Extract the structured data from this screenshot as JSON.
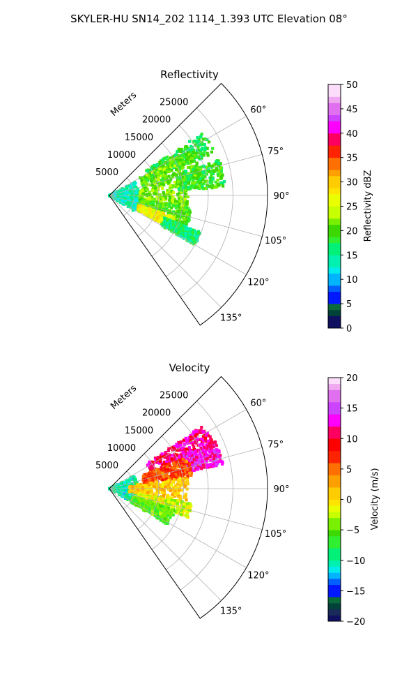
{
  "figure": {
    "suptitle": "SKYLER-HU  SN14_202  1114_1.393 UTC Elevation 08°"
  },
  "chart_data": [
    {
      "type": "heatmap",
      "subtype": "radar-sector (polar PPI)",
      "title": "Reflectivity",
      "range_axis_label": "Meters",
      "range_ticks": [
        "5000",
        "10000",
        "15000",
        "20000",
        "25000"
      ],
      "range_tick_values": [
        5000,
        10000,
        15000,
        20000,
        25000
      ],
      "rlim": [
        0,
        32000
      ],
      "azimuth_range_deg": [
        45,
        145
      ],
      "azimuth_ticks": [
        "60°",
        "75°",
        "90°",
        "105°",
        "120°",
        "135°"
      ],
      "azimuth_tick_values": [
        60,
        75,
        90,
        105,
        120,
        135
      ],
      "grid": true,
      "colorbar": {
        "label": "Reflectivity dBZ",
        "min": 0,
        "max": 50,
        "ticks": [
          "0",
          "5",
          "10",
          "15",
          "20",
          "25",
          "30",
          "35",
          "40",
          "45",
          "50"
        ],
        "colormap": [
          [
            0,
            "#101060"
          ],
          [
            2,
            "#1a2a5a"
          ],
          [
            3,
            "#00423a"
          ],
          [
            4,
            "#0a6a3a"
          ],
          [
            5,
            "#0018ff"
          ],
          [
            7,
            "#0060ff"
          ],
          [
            9,
            "#00b4ff"
          ],
          [
            11,
            "#00ecec"
          ],
          [
            13,
            "#00f0b0"
          ],
          [
            15,
            "#00f078"
          ],
          [
            17,
            "#30ee30"
          ],
          [
            19,
            "#3cd800"
          ],
          [
            21,
            "#78f000"
          ],
          [
            23,
            "#c8ff00"
          ],
          [
            25,
            "#eaff00"
          ],
          [
            27,
            "#ffe400"
          ],
          [
            29,
            "#ffcc00"
          ],
          [
            31,
            "#ffa000"
          ],
          [
            33,
            "#ff7000"
          ],
          [
            35,
            "#ff2400"
          ],
          [
            37,
            "#ff0000"
          ],
          [
            38,
            "#ff0060"
          ],
          [
            40,
            "#ff00ff"
          ],
          [
            42,
            "#cc44ff"
          ],
          [
            44,
            "#e070f0"
          ],
          [
            46,
            "#f0a8f0"
          ],
          [
            48,
            "#fbdcfb"
          ],
          [
            50,
            "#fff0ff"
          ]
        ]
      },
      "echo_regions": [
        {
          "az": [
            56,
            68
          ],
          "r": [
            9000,
            23000
          ],
          "value": 18
        },
        {
          "az": [
            60,
            80
          ],
          "r": [
            7000,
            19000
          ],
          "value": 21
        },
        {
          "az": [
            80,
            100
          ],
          "r": [
            3000,
            16000
          ],
          "value": 22
        },
        {
          "az": [
            98,
            112
          ],
          "r": [
            3000,
            17000
          ],
          "value": 20
        },
        {
          "az": [
            108,
            118
          ],
          "r": [
            6000,
            14000
          ],
          "value": 27
        },
        {
          "az": [
            62,
            122
          ],
          "r": [
            0,
            6000
          ],
          "value": 14
        },
        {
          "az": [
            112,
            120
          ],
          "r": [
            12000,
            20000
          ],
          "value": 16
        },
        {
          "az": [
            72,
            86
          ],
          "r": [
            14000,
            23500
          ],
          "value": 19
        }
      ]
    },
    {
      "type": "heatmap",
      "subtype": "radar-sector (polar PPI)",
      "title": "Velocity",
      "range_axis_label": "Meters",
      "range_ticks": [
        "5000",
        "10000",
        "15000",
        "20000",
        "25000"
      ],
      "range_tick_values": [
        5000,
        10000,
        15000,
        20000,
        25000
      ],
      "rlim": [
        0,
        32000
      ],
      "azimuth_range_deg": [
        45,
        145
      ],
      "azimuth_ticks": [
        "60°",
        "75°",
        "90°",
        "105°",
        "120°",
        "135°"
      ],
      "azimuth_tick_values": [
        60,
        75,
        90,
        105,
        120,
        135
      ],
      "grid": true,
      "colorbar": {
        "label": "Velocity (m/s)",
        "min": -20,
        "max": 20,
        "ticks": [
          "−20",
          "−15",
          "−10",
          "−5",
          "0",
          "5",
          "10",
          "15",
          "20"
        ],
        "colormap": [
          [
            -20,
            "#101060"
          ],
          [
            -19,
            "#1a2a5a"
          ],
          [
            -18,
            "#00423a"
          ],
          [
            -17,
            "#0a6a3a"
          ],
          [
            -16,
            "#0018ff"
          ],
          [
            -14,
            "#0060ff"
          ],
          [
            -13,
            "#00b4ff"
          ],
          [
            -12,
            "#00ecec"
          ],
          [
            -11,
            "#00f0b0"
          ],
          [
            -10,
            "#00f078"
          ],
          [
            -8,
            "#30ee30"
          ],
          [
            -6,
            "#3cd800"
          ],
          [
            -5,
            "#78f000"
          ],
          [
            -3,
            "#c8ff00"
          ],
          [
            -2,
            "#eaff00"
          ],
          [
            -1,
            "#ffe400"
          ],
          [
            0,
            "#ffcc00"
          ],
          [
            2,
            "#ffa000"
          ],
          [
            4,
            "#ff7000"
          ],
          [
            6,
            "#ff2400"
          ],
          [
            8,
            "#ff0000"
          ],
          [
            10,
            "#ff0060"
          ],
          [
            12,
            "#ff00ff"
          ],
          [
            14,
            "#cc44ff"
          ],
          [
            16,
            "#e070f0"
          ],
          [
            18,
            "#f0a8f0"
          ],
          [
            19,
            "#fbdcfb"
          ],
          [
            20,
            "#fff0ff"
          ]
        ]
      },
      "echo_regions": [
        {
          "az": [
            62,
            122
          ],
          "r": [
            0,
            6000
          ],
          "value": -10
        },
        {
          "az": [
            56,
            68
          ],
          "r": [
            9000,
            23000
          ],
          "value": 11
        },
        {
          "az": [
            66,
            78
          ],
          "r": [
            16000,
            23500
          ],
          "value": 13
        },
        {
          "az": [
            68,
            82
          ],
          "r": [
            7000,
            17000
          ],
          "value": 6
        },
        {
          "az": [
            82,
            100
          ],
          "r": [
            4000,
            16000
          ],
          "value": 1
        },
        {
          "az": [
            100,
            110
          ],
          "r": [
            6000,
            17000
          ],
          "value": -2
        },
        {
          "az": [
            108,
            122
          ],
          "r": [
            5000,
            14000
          ],
          "value": -5
        }
      ]
    }
  ]
}
